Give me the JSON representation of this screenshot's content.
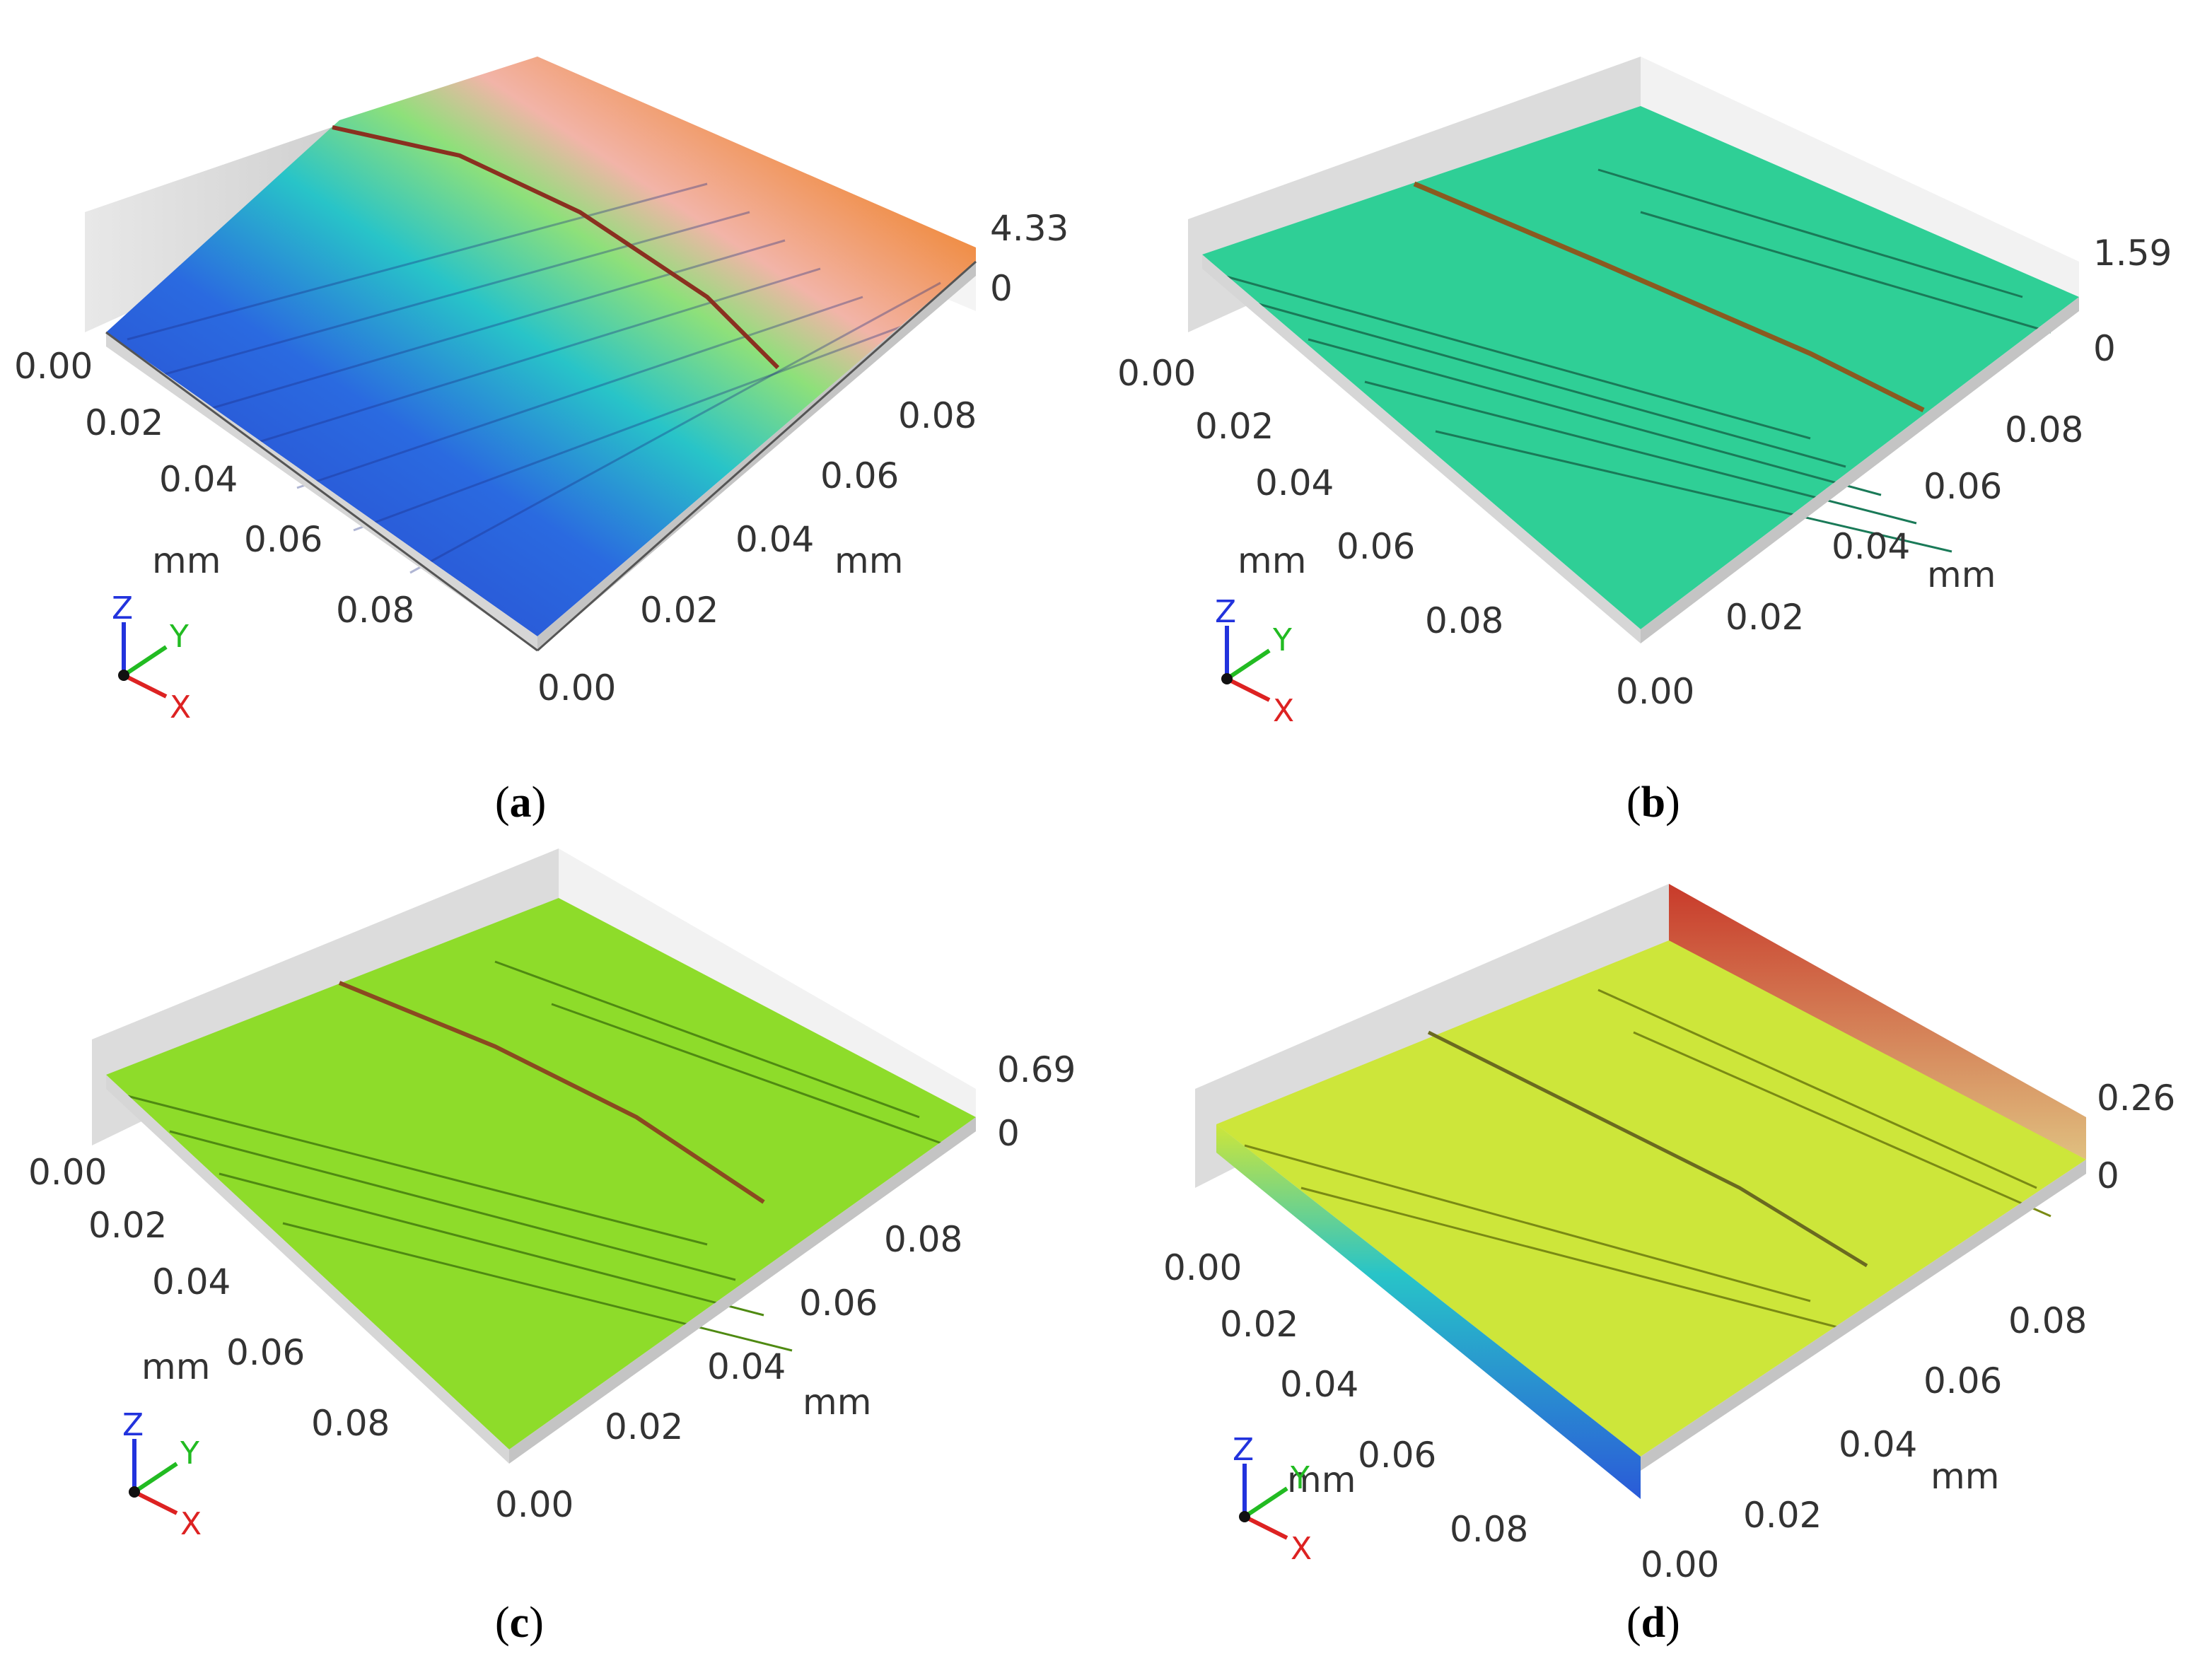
{
  "figure": {
    "panels": [
      {
        "id": "a",
        "caption": "a",
        "zmax_label": "4.33",
        "zmin_label": "0",
        "x_ticks": [
          "0.00",
          "0.02",
          "0.04",
          "0.06",
          "0.08"
        ],
        "y_ticks": [
          "0.00",
          "0.02",
          "0.04",
          "0.06",
          "0.08"
        ],
        "x_unit": "mm",
        "y_unit": "mm",
        "colors": {
          "low": "#2a3cc8",
          "mid": "#28c4c8",
          "high": "#f08a3c",
          "top": "#f2b4a8"
        }
      },
      {
        "id": "b",
        "caption": "b",
        "zmax_label": "1.59",
        "zmin_label": "0",
        "x_ticks": [
          "0.00",
          "0.02",
          "0.04",
          "0.06",
          "0.08"
        ],
        "y_ticks": [
          "0.00",
          "0.02",
          "0.04",
          "0.06",
          "0.08"
        ],
        "x_unit": "mm",
        "y_unit": "mm",
        "colors": {
          "surface": "#2fcf96",
          "line": "#1a7a58"
        }
      },
      {
        "id": "c",
        "caption": "c",
        "zmax_label": "0.69",
        "zmin_label": "0",
        "x_ticks": [
          "0.00",
          "0.02",
          "0.04",
          "0.06",
          "0.08"
        ],
        "y_ticks": [
          "0.00",
          "0.02",
          "0.04",
          "0.06",
          "0.08"
        ],
        "x_unit": "mm",
        "y_unit": "mm",
        "colors": {
          "surface": "#8edc2a",
          "line": "#4f8a12"
        }
      },
      {
        "id": "d",
        "caption": "d",
        "zmax_label": "0.26",
        "zmin_label": "0",
        "x_ticks": [
          "0.00",
          "0.02",
          "0.04",
          "0.06",
          "0.08"
        ],
        "y_ticks": [
          "0.00",
          "0.02",
          "0.04",
          "0.06",
          "0.08"
        ],
        "x_unit": "mm",
        "y_unit": "mm",
        "colors": {
          "surface": "#cde63a",
          "line": "#7a8a14",
          "edge_low": "#2a5ad8",
          "edge_high": "#c83a2a"
        }
      }
    ],
    "axis_triad": {
      "z": "Z",
      "y": "Y",
      "x": "X",
      "colors": {
        "z": "#2233dd",
        "y": "#22bb22",
        "x": "#dd2222"
      }
    }
  }
}
